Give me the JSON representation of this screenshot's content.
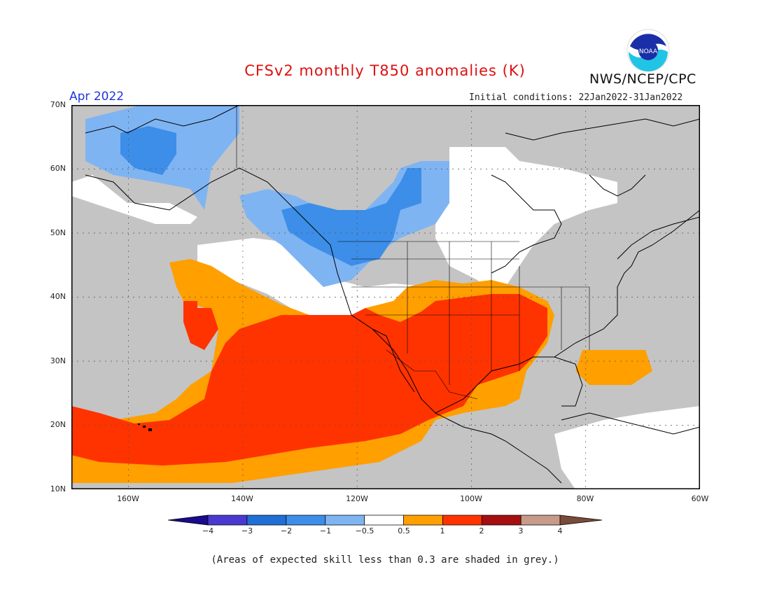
{
  "header": {
    "title": "CFSv2 monthly T850 anomalies (K)",
    "agency": "NWS/NCEP/CPC",
    "month": "Apr 2022",
    "initial_conditions": "Initial conditions: 22Jan2022-31Jan2022",
    "logo_text": "NOAA"
  },
  "colors": {
    "title": "#dd1111",
    "month": "#2233dd",
    "grey": "#c4c4c4",
    "ocean_white": "#ffffff",
    "light_blue": "#7fb4f2",
    "mid_blue": "#3c8ee8",
    "orange": "#ff9f00",
    "red_orange": "#ff3300",
    "coast": "#000000"
  },
  "map": {
    "projection": "lat-lon",
    "lon_range": [
      -170,
      -60
    ],
    "lat_range": [
      10,
      70
    ],
    "y_ticks": [
      "70N",
      "60N",
      "50N",
      "40N",
      "30N",
      "20N",
      "10N"
    ],
    "x_ticks": [
      "160W",
      "140W",
      "120W",
      "100W",
      "80W",
      "60W"
    ]
  },
  "colorbar": {
    "colors": [
      "#1a0a8c",
      "#4a39d0",
      "#1f6fd6",
      "#3c8ee8",
      "#7fb4f2",
      "#ffffff",
      "#ff9f00",
      "#ff3300",
      "#a50f0f",
      "#c79a8a",
      "#7a4a3a"
    ],
    "labels": [
      "−4",
      "−3",
      "−2",
      "−1",
      "−0.5",
      "0.5",
      "1",
      "2",
      "3",
      "4"
    ]
  },
  "footnote": "(Areas of expected skill less than 0.3 are shaded in grey.)"
}
